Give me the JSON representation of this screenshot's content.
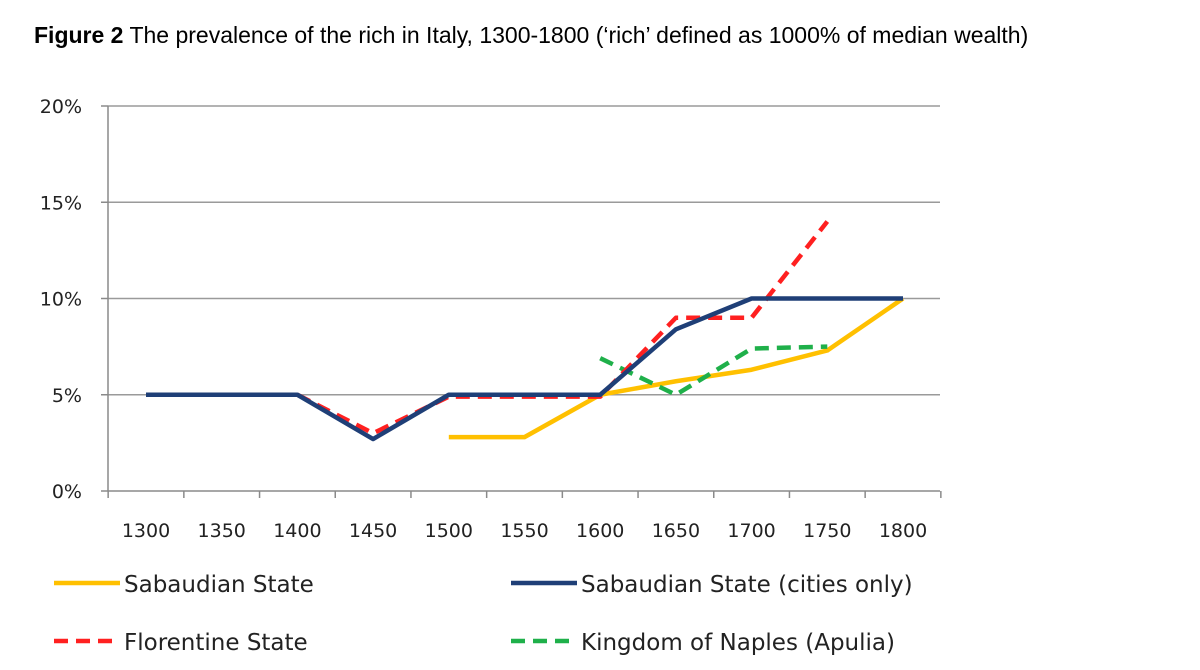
{
  "figure": {
    "label": "Figure 2",
    "caption": "The prevalence of the rich in Italy, 1300-1800 (‘rich’ defined as 1000% of median wealth)"
  },
  "chart_data": {
    "type": "line",
    "title": "Figure 2 The prevalence of the rich in Italy, 1300-1800 (‘rich’ defined as 1000% of median wealth)",
    "xlabel": "",
    "ylabel": "",
    "x_ticks": [
      1300,
      1350,
      1400,
      1450,
      1500,
      1550,
      1600,
      1650,
      1700,
      1750,
      1800
    ],
    "x_tick_labels": [
      "1300",
      "1350",
      "1400",
      "1450",
      "1500",
      "1550",
      "1600",
      "1650",
      "1700",
      "1750",
      "1800"
    ],
    "y_ticks": [
      0,
      5,
      10,
      15,
      20
    ],
    "y_tick_labels": [
      "0%",
      "5%",
      "10%",
      "15%",
      "20%"
    ],
    "ylim": [
      0,
      20
    ],
    "grid": true,
    "legend_position": "bottom",
    "series": [
      {
        "name": "Sabaudian State",
        "color": "#FFC000",
        "style": "solid",
        "points": [
          [
            1500,
            2.8
          ],
          [
            1550,
            2.8
          ],
          [
            1600,
            5.0
          ],
          [
            1650,
            5.7
          ],
          [
            1700,
            6.3
          ],
          [
            1750,
            7.3
          ],
          [
            1800,
            10.0
          ]
        ]
      },
      {
        "name": "Sabaudian State (cities only)",
        "color": "#1F3F77",
        "style": "solid",
        "points": [
          [
            1300,
            5.0
          ],
          [
            1350,
            5.0
          ],
          [
            1400,
            5.0
          ],
          [
            1450,
            2.7
          ],
          [
            1500,
            5.0
          ],
          [
            1550,
            5.0
          ],
          [
            1600,
            5.0
          ],
          [
            1650,
            8.4
          ],
          [
            1700,
            10.0
          ],
          [
            1750,
            10.0
          ],
          [
            1800,
            10.0
          ]
        ]
      },
      {
        "name": "Florentine State",
        "color": "#FF2020",
        "style": "dashed",
        "points": [
          [
            1400,
            5.0
          ],
          [
            1450,
            3.0
          ],
          [
            1500,
            4.9
          ],
          [
            1550,
            4.9
          ],
          [
            1600,
            4.9
          ],
          [
            1650,
            9.0
          ],
          [
            1700,
            9.0
          ],
          [
            1750,
            14.0
          ]
        ]
      },
      {
        "name": "Kingdom of Naples (Apulia)",
        "color": "#1FB04A",
        "style": "dashed",
        "points": [
          [
            1600,
            6.9
          ],
          [
            1650,
            5.0
          ],
          [
            1700,
            7.4
          ],
          [
            1750,
            7.5
          ]
        ]
      }
    ]
  }
}
